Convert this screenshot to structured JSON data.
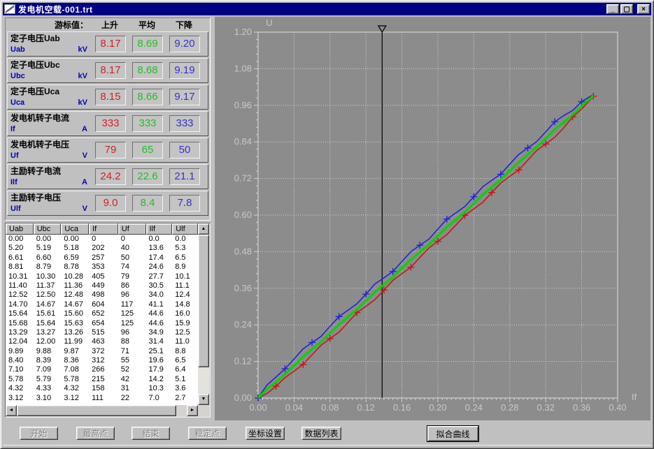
{
  "window": {
    "title": "发电机空载-001.trt"
  },
  "titlebar": {
    "minimize_glyph": "_",
    "maximize_glyph": "▢",
    "close_glyph": "×"
  },
  "cursor_panel": {
    "header": {
      "cursor_label": "游标值：",
      "rise": "上升",
      "avg": "平均",
      "fall": "下降"
    },
    "colors": {
      "rise": "#d42020",
      "avg": "#22c022",
      "fall": "#3434c8"
    },
    "rows": [
      {
        "name": "定子电压Uab",
        "code": "Uab",
        "unit": "kV",
        "rise": "8.17",
        "avg": "8.69",
        "fall": "9.20"
      },
      {
        "name": "定子电压Ubc",
        "code": "Ubc",
        "unit": "kV",
        "rise": "8.17",
        "avg": "8.68",
        "fall": "9.19"
      },
      {
        "name": "定子电压Uca",
        "code": "Uca",
        "unit": "kV",
        "rise": "8.15",
        "avg": "8.66",
        "fall": "9.17"
      },
      {
        "name": "发电机转子电流",
        "code": "If",
        "unit": "A",
        "rise": "333",
        "avg": "333",
        "fall": "333"
      },
      {
        "name": "发电机转子电压",
        "code": "Uf",
        "unit": "V",
        "rise": "79",
        "avg": "65",
        "fall": "50"
      },
      {
        "name": "主励转子电流",
        "code": "Ilf",
        "unit": "A",
        "rise": "24.2",
        "avg": "22.6",
        "fall": "21.1"
      },
      {
        "name": "主励转子电压",
        "code": "Ulf",
        "unit": "V",
        "rise": "9.0",
        "avg": "8.4",
        "fall": "7.8"
      }
    ]
  },
  "data_table": {
    "columns": [
      "Uab",
      "Ubc",
      "Uca",
      "If",
      "Uf",
      "Ilf",
      "Ulf"
    ],
    "rows": [
      [
        "0.00",
        "0.00",
        "0.00",
        "0",
        "0",
        "0.0",
        "0.0"
      ],
      [
        "5.20",
        "5.19",
        "5.18",
        "202",
        "40",
        "13.6",
        "5.3"
      ],
      [
        "6.61",
        "6.60",
        "6.59",
        "257",
        "50",
        "17.4",
        "6.5"
      ],
      [
        "8.81",
        "8.79",
        "8.78",
        "353",
        "74",
        "24.6",
        "8.9"
      ],
      [
        "10.31",
        "10.30",
        "10.28",
        "405",
        "79",
        "27.7",
        "10.1"
      ],
      [
        "11.40",
        "11.37",
        "11.36",
        "449",
        "86",
        "30.5",
        "11.1"
      ],
      [
        "12.52",
        "12.50",
        "12.48",
        "498",
        "96",
        "34.0",
        "12.4"
      ],
      [
        "14.70",
        "14.67",
        "14.67",
        "604",
        "117",
        "41.1",
        "14.8"
      ],
      [
        "15.64",
        "15.61",
        "15.60",
        "652",
        "125",
        "44.6",
        "16.0"
      ],
      [
        "15.68",
        "15.64",
        "15.63",
        "654",
        "125",
        "44.6",
        "15.9"
      ],
      [
        "13.29",
        "13.27",
        "13.26",
        "515",
        "96",
        "34.9",
        "12.5"
      ],
      [
        "12.04",
        "12.00",
        "11.99",
        "463",
        "88",
        "31.4",
        "11.0"
      ],
      [
        "9.89",
        "9.88",
        "9.87",
        "372",
        "71",
        "25.1",
        "8.8"
      ],
      [
        "8.40",
        "8.39",
        "8.36",
        "312",
        "55",
        "19.6",
        "6.5"
      ],
      [
        "7.10",
        "7.09",
        "7.08",
        "266",
        "52",
        "17.9",
        "6.4"
      ],
      [
        "5.78",
        "5.79",
        "5.78",
        "215",
        "42",
        "14.2",
        "5.1"
      ],
      [
        "4.32",
        "4.33",
        "4.32",
        "158",
        "31",
        "10.3",
        "3.6"
      ],
      [
        "3.12",
        "3.10",
        "3.12",
        "111",
        "22",
        "7.0",
        "2.7"
      ]
    ]
  },
  "buttons": [
    {
      "label": "开始",
      "enabled": false
    },
    {
      "label": "最高点",
      "enabled": false
    },
    {
      "label": "结束",
      "enabled": false
    },
    {
      "label": "稳定点",
      "enabled": false
    },
    {
      "label": "坐标设置",
      "enabled": true
    },
    {
      "label": "数据列表",
      "enabled": true
    },
    {
      "label": "拟合曲线",
      "enabled": true,
      "default": true
    }
  ],
  "chart_data": {
    "type": "line",
    "xlabel": "If",
    "ylabel": "U",
    "xlim": [
      0,
      0.4
    ],
    "ylim": [
      0,
      1.2
    ],
    "xtick_labels": [
      "0.00",
      "0.04",
      "0.08",
      "0.12",
      "0.16",
      "0.20",
      "0.24",
      "0.28",
      "0.32",
      "0.36",
      "0.40"
    ],
    "ytick_labels": [
      "1.20",
      "1.08",
      "0.96",
      "0.84",
      "0.72",
      "0.60",
      "0.48",
      "0.36",
      "0.24",
      "0.12",
      "0.00"
    ],
    "grid": true,
    "cursor_x": 0.138,
    "x": [
      0,
      0.01,
      0.02,
      0.03,
      0.04,
      0.05,
      0.06,
      0.07,
      0.08,
      0.09,
      0.1,
      0.11,
      0.12,
      0.13,
      0.14,
      0.15,
      0.16,
      0.17,
      0.18,
      0.19,
      0.2,
      0.21,
      0.22,
      0.23,
      0.24,
      0.25,
      0.26,
      0.27,
      0.28,
      0.29,
      0.3,
      0.31,
      0.32,
      0.33,
      0.34,
      0.35,
      0.36,
      0.37,
      0.373
    ],
    "series": [
      {
        "name": "下降 (falling)",
        "color": "#2222e0",
        "width": 1.6,
        "marker_start": 0,
        "marker_every": 3,
        "marker_size": 5,
        "y": [
          0,
          0.043,
          0.069,
          0.096,
          0.128,
          0.161,
          0.182,
          0.202,
          0.235,
          0.267,
          0.288,
          0.309,
          0.341,
          0.374,
          0.394,
          0.415,
          0.448,
          0.48,
          0.501,
          0.521,
          0.554,
          0.587,
          0.607,
          0.628,
          0.66,
          0.693,
          0.714,
          0.734,
          0.767,
          0.799,
          0.82,
          0.841,
          0.873,
          0.906,
          0.926,
          0.943,
          0.972,
          0.99,
          0.994
        ]
      },
      {
        "name": "上升 (rising)",
        "color": "#cc1414",
        "width": 1.6,
        "marker_start": 2,
        "marker_every": 3,
        "marker_size": 5,
        "y": [
          0,
          0.015,
          0.039,
          0.067,
          0.088,
          0.11,
          0.142,
          0.173,
          0.195,
          0.216,
          0.248,
          0.28,
          0.301,
          0.323,
          0.354,
          0.386,
          0.408,
          0.429,
          0.461,
          0.492,
          0.514,
          0.536,
          0.567,
          0.599,
          0.62,
          0.642,
          0.674,
          0.705,
          0.727,
          0.748,
          0.78,
          0.812,
          0.833,
          0.855,
          0.886,
          0.922,
          0.948,
          0.98,
          0.99
        ]
      },
      {
        "name": "平均 (average)",
        "color": "#00d400",
        "width": 3,
        "marker_start": 4,
        "marker_every": 6,
        "marker_size": 3,
        "y": [
          0,
          0.029,
          0.053,
          0.078,
          0.106,
          0.135,
          0.16,
          0.184,
          0.213,
          0.241,
          0.266,
          0.291,
          0.319,
          0.348,
          0.372,
          0.397,
          0.426,
          0.454,
          0.479,
          0.503,
          0.532,
          0.561,
          0.585,
          0.61,
          0.638,
          0.667,
          0.692,
          0.716,
          0.745,
          0.773,
          0.798,
          0.823,
          0.851,
          0.88,
          0.904,
          0.929,
          0.958,
          0.984,
          0.992
        ]
      }
    ]
  }
}
